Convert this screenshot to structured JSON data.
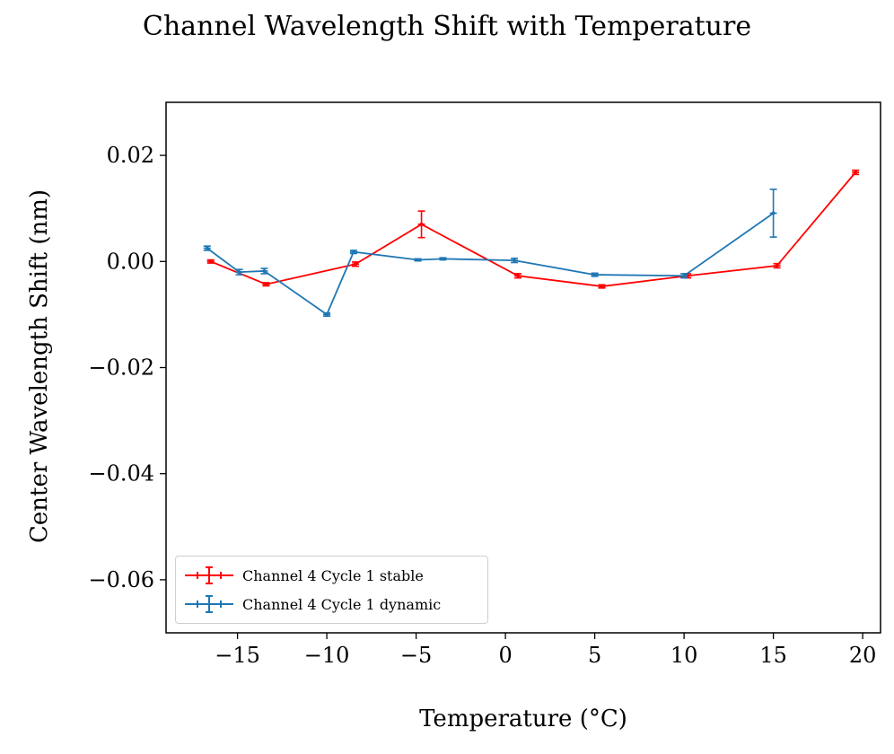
{
  "chart_data": {
    "type": "line",
    "title": "Channel Wavelength Shift with Temperature",
    "xlabel": "Temperature (°C)",
    "ylabel": "Center Wavelength Shift (nm)",
    "xlim": [
      -19,
      21
    ],
    "ylim": [
      -0.07,
      0.03
    ],
    "xticks": [
      -15,
      -10,
      -5,
      0,
      5,
      10,
      15,
      20
    ],
    "xtick_labels": [
      "−15",
      "−10",
      "−5",
      "0",
      "5",
      "10",
      "15",
      "20"
    ],
    "yticks": [
      0.02,
      0.0,
      -0.02,
      -0.04,
      -0.06
    ],
    "ytick_labels": [
      "0.02",
      "0.00",
      "−0.02",
      "−0.04",
      "−0.06"
    ],
    "grid": false,
    "legend_position": "lower-left",
    "series": [
      {
        "name": "Channel 4 Cycle 1 stable",
        "color": "#ff0000",
        "x": [
          -16.5,
          -13.4,
          -8.4,
          -4.7,
          0.7,
          5.4,
          10.2,
          15.2,
          19.6
        ],
        "y": [
          0.0,
          -0.0043,
          -0.0005,
          0.007,
          -0.0027,
          -0.0047,
          -0.0027,
          -0.0008,
          0.0168
        ],
        "yerr": [
          0.0003,
          0.0003,
          0.0004,
          0.0025,
          0.0004,
          0.0003,
          0.0004,
          0.0004,
          0.0004
        ]
      },
      {
        "name": "Channel 4 Cycle 1 dynamic",
        "color": "#1f77b4",
        "x": [
          -16.7,
          -14.9,
          -13.5,
          -10.0,
          -8.5,
          -4.9,
          -3.5,
          0.5,
          5.0,
          10.0,
          15.0
        ],
        "y": [
          0.0025,
          -0.002,
          -0.0018,
          -0.01,
          0.0018,
          0.0003,
          0.0005,
          0.0002,
          -0.0025,
          -0.0027,
          0.0091
        ],
        "yerr": [
          0.0004,
          0.0005,
          0.0005,
          0.0003,
          0.0003,
          0.0002,
          0.0002,
          0.0004,
          0.0003,
          0.0004,
          0.0045
        ]
      }
    ]
  }
}
